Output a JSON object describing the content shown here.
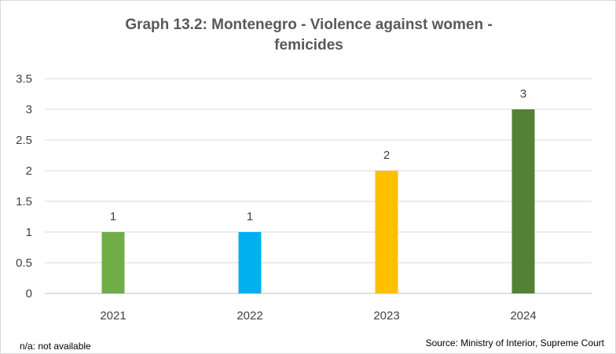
{
  "chart_data": {
    "type": "bar",
    "title": "Graph 13.2: Montenegro - Violence against women -\nfemicides",
    "categories": [
      "2021",
      "2022",
      "2023",
      "2024"
    ],
    "values": [
      1,
      1,
      2,
      3
    ],
    "data_labels": [
      "1",
      "1",
      "2",
      "3"
    ],
    "bar_colors": [
      "#70ad47",
      "#00b0f0",
      "#ffc000",
      "#538135"
    ],
    "ylim": [
      0,
      3.5
    ],
    "yticks": [
      "0",
      "0.5",
      "1",
      "1.5",
      "2",
      "2.5",
      "3",
      "3.5"
    ],
    "ytick_values": [
      0,
      0.5,
      1,
      1.5,
      2,
      2.5,
      3,
      3.5
    ],
    "grid": true,
    "legend": "none"
  },
  "notes": {
    "left": "n/a: not available",
    "right": "Source: Ministry of Interior, Supreme Court"
  },
  "colors": {
    "gridline": "#d9d9d9",
    "axis_line": "#bfbfbf",
    "text": "#404040",
    "title": "#595959"
  }
}
